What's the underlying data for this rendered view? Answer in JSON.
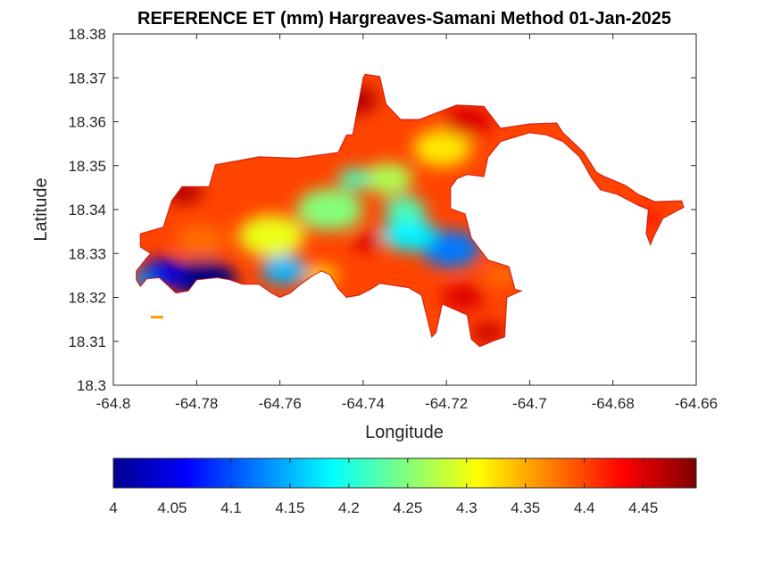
{
  "chart_data": {
    "type": "heatmap",
    "title": "REFERENCE ET (mm) Hargreaves-Samani Method  01-Jan-2025",
    "xlabel": "Longitude",
    "ylabel": "Latitude",
    "xlim": [
      -64.8,
      -64.66
    ],
    "ylim": [
      18.3,
      18.38
    ],
    "xticks": [
      "-64.8",
      "-64.78",
      "-64.76",
      "-64.74",
      "-64.72",
      "-64.7",
      "-64.68",
      "-64.66"
    ],
    "yticks": [
      "18.3",
      "18.31",
      "18.32",
      "18.33",
      "18.34",
      "18.35",
      "18.36",
      "18.37",
      "18.38"
    ],
    "colorbar": {
      "colormap": "jet",
      "clim": [
        4.0,
        4.495
      ],
      "ticks": [
        "4",
        "4.05",
        "4.1",
        "4.15",
        "4.2",
        "4.25",
        "4.3",
        "4.35",
        "4.4",
        "4.45"
      ],
      "orientation": "horizontal"
    },
    "grid": false,
    "island_outline_lonlat": [
      [
        -64.7935,
        18.3345
      ],
      [
        -64.788,
        18.336
      ],
      [
        -64.786,
        18.342
      ],
      [
        -64.7835,
        18.3452
      ],
      [
        -64.777,
        18.3452
      ],
      [
        -64.7755,
        18.3502
      ],
      [
        -64.765,
        18.352
      ],
      [
        -64.756,
        18.3517
      ],
      [
        -64.746,
        18.353
      ],
      [
        -64.744,
        18.357
      ],
      [
        -64.7425,
        18.357
      ],
      [
        -64.74,
        18.37
      ],
      [
        -64.7395,
        18.3708
      ],
      [
        -64.736,
        18.3703
      ],
      [
        -64.7345,
        18.364
      ],
      [
        -64.731,
        18.3605
      ],
      [
        -64.7265,
        18.3605
      ],
      [
        -64.7175,
        18.3638
      ],
      [
        -64.711,
        18.3635
      ],
      [
        -64.707,
        18.3585
      ],
      [
        -64.7,
        18.3595
      ],
      [
        -64.6935,
        18.3597
      ],
      [
        -64.692,
        18.3575
      ],
      [
        -64.687,
        18.353
      ],
      [
        -64.684,
        18.3485
      ],
      [
        -64.682,
        18.3475
      ],
      [
        -64.677,
        18.3455
      ],
      [
        -64.674,
        18.3435
      ],
      [
        -64.67,
        18.3418
      ],
      [
        -64.6635,
        18.342
      ],
      [
        -64.663,
        18.3405
      ],
      [
        -64.668,
        18.338
      ],
      [
        -64.67,
        18.3343
      ],
      [
        -64.671,
        18.332
      ],
      [
        -64.672,
        18.3345
      ],
      [
        -64.6715,
        18.34
      ],
      [
        -64.674,
        18.341
      ],
      [
        -64.679,
        18.3435
      ],
      [
        -64.683,
        18.3445
      ],
      [
        -64.685,
        18.347
      ],
      [
        -64.688,
        18.352
      ],
      [
        -64.692,
        18.3555
      ],
      [
        -64.696,
        18.357
      ],
      [
        -64.7,
        18.3575
      ],
      [
        -64.707,
        18.3555
      ],
      [
        -64.71,
        18.352
      ],
      [
        -64.711,
        18.3475
      ],
      [
        -64.715,
        18.348
      ],
      [
        -64.7175,
        18.347
      ],
      [
        -64.719,
        18.345
      ],
      [
        -64.719,
        18.3402
      ],
      [
        -64.7155,
        18.339
      ],
      [
        -64.714,
        18.3335
      ],
      [
        -64.71,
        18.3285
      ],
      [
        -64.705,
        18.327
      ],
      [
        -64.7035,
        18.3218
      ],
      [
        -64.702,
        18.3215
      ],
      [
        -64.7055,
        18.32
      ],
      [
        -64.706,
        18.311
      ],
      [
        -64.709,
        18.31
      ],
      [
        -64.712,
        18.3088
      ],
      [
        -64.714,
        18.3105
      ],
      [
        -64.715,
        18.316
      ],
      [
        -64.721,
        18.3185
      ],
      [
        -64.7225,
        18.312
      ],
      [
        -64.7235,
        18.311
      ],
      [
        -64.726,
        18.3205
      ],
      [
        -64.729,
        18.3222
      ],
      [
        -64.736,
        18.3232
      ],
      [
        -64.738,
        18.322
      ],
      [
        -64.741,
        18.3205
      ],
      [
        -64.744,
        18.32
      ],
      [
        -64.746,
        18.322
      ],
      [
        -64.748,
        18.3252
      ],
      [
        -64.75,
        18.326
      ],
      [
        -64.752,
        18.325
      ],
      [
        -64.755,
        18.323
      ],
      [
        -64.7575,
        18.321
      ],
      [
        -64.76,
        18.32
      ],
      [
        -64.762,
        18.321
      ],
      [
        -64.765,
        18.323
      ],
      [
        -64.769,
        18.323
      ],
      [
        -64.772,
        18.324
      ],
      [
        -64.775,
        18.3245
      ],
      [
        -64.78,
        18.324
      ],
      [
        -64.782,
        18.3215
      ],
      [
        -64.785,
        18.321
      ],
      [
        -64.787,
        18.3228
      ],
      [
        -64.789,
        18.3245
      ],
      [
        -64.792,
        18.3242
      ],
      [
        -64.7935,
        18.3225
      ],
      [
        -64.7945,
        18.324
      ],
      [
        -64.7945,
        18.326
      ],
      [
        -64.792,
        18.329
      ],
      [
        -64.791,
        18.33
      ],
      [
        -64.7935,
        18.3315
      ]
    ],
    "islet_lonlat": [
      [
        -64.791,
        18.3156
      ],
      [
        -64.788,
        18.3156
      ]
    ],
    "field_features": [
      {
        "lon": -64.778,
        "lat": 18.324,
        "value": 4.0,
        "radius_deg": 0.0075
      },
      {
        "lon": -64.788,
        "lat": 18.3255,
        "value": 4.05,
        "radius_deg": 0.0055
      },
      {
        "lon": -64.793,
        "lat": 18.3235,
        "value": 4.13,
        "radius_deg": 0.003
      },
      {
        "lon": -64.759,
        "lat": 18.3262,
        "value": 4.15,
        "radius_deg": 0.0055
      },
      {
        "lon": -64.719,
        "lat": 18.331,
        "value": 4.12,
        "radius_deg": 0.007
      },
      {
        "lon": -64.729,
        "lat": 18.3345,
        "value": 4.18,
        "radius_deg": 0.0065
      },
      {
        "lon": -64.748,
        "lat": 18.34,
        "value": 4.25,
        "radius_deg": 0.008
      },
      {
        "lon": -64.734,
        "lat": 18.347,
        "value": 4.27,
        "radius_deg": 0.006
      },
      {
        "lon": -64.721,
        "lat": 18.354,
        "value": 4.32,
        "radius_deg": 0.007
      },
      {
        "lon": -64.762,
        "lat": 18.334,
        "value": 4.3,
        "radius_deg": 0.008
      },
      {
        "lon": -64.742,
        "lat": 18.347,
        "value": 4.22,
        "radius_deg": 0.004
      },
      {
        "lon": -64.73,
        "lat": 18.34,
        "value": 4.22,
        "radius_deg": 0.005
      },
      {
        "lon": -64.779,
        "lat": 18.333,
        "value": 4.38,
        "radius_deg": 0.006
      },
      {
        "lon": -64.783,
        "lat": 18.344,
        "value": 4.47,
        "radius_deg": 0.0045
      },
      {
        "lon": -64.742,
        "lat": 18.365,
        "value": 4.47,
        "radius_deg": 0.0055
      },
      {
        "lon": -64.715,
        "lat": 18.36,
        "value": 4.45,
        "radius_deg": 0.006
      },
      {
        "lon": -64.739,
        "lat": 18.333,
        "value": 4.45,
        "radius_deg": 0.004
      },
      {
        "lon": -64.716,
        "lat": 18.32,
        "value": 4.45,
        "radius_deg": 0.005
      },
      {
        "lon": -64.71,
        "lat": 18.312,
        "value": 4.46,
        "radius_deg": 0.004
      },
      {
        "lon": -64.672,
        "lat": 18.338,
        "value": 4.42,
        "radius_deg": 0.004
      },
      {
        "lon": -64.768,
        "lat": 18.35,
        "value": 4.4,
        "radius_deg": 0.005
      },
      {
        "lon": -64.707,
        "lat": 18.325,
        "value": 4.38,
        "radius_deg": 0.004
      },
      {
        "lon": -64.75,
        "lat": 18.325,
        "value": 4.33,
        "radius_deg": 0.004
      }
    ],
    "field_background_value": 4.4
  }
}
